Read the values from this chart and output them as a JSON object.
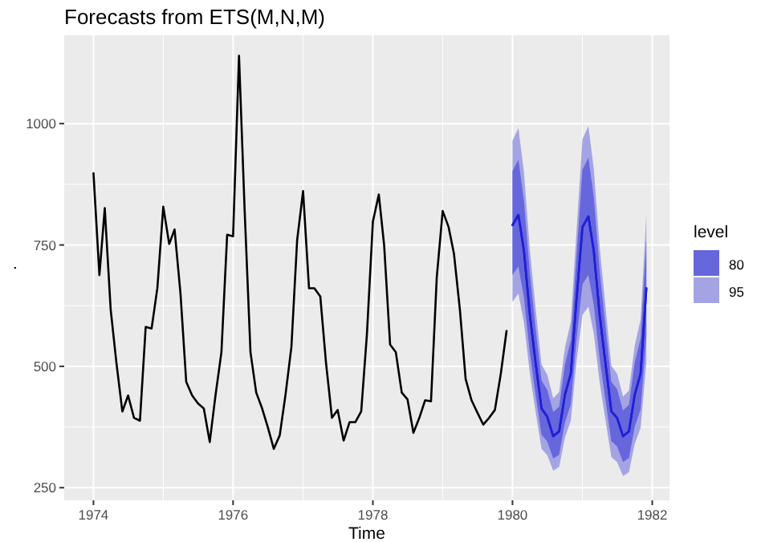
{
  "chart_data": {
    "type": "line",
    "title": "Forecasts from ETS(M,N,M)",
    "xlabel": "Time",
    "ylabel": ".",
    "legend_title": "level",
    "legend": "right",
    "grid": true,
    "xlim": [
      "1973-08",
      "1982-04"
    ],
    "xticks": [
      "1974",
      "1976",
      "1978",
      "1980",
      "1982"
    ],
    "ylim": [
      224,
      1182
    ],
    "yticks": [
      250,
      500,
      750,
      1000
    ],
    "series": [
      {
        "name": "80",
        "color": "#1f1fd6",
        "x": [
          "1980-01",
          "1980-02",
          "1980-03",
          "1980-04",
          "1980-05",
          "1980-06",
          "1980-07",
          "1980-08",
          "1980-09",
          "1980-10",
          "1980-11",
          "1980-12",
          "1981-01",
          "1981-02",
          "1981-03",
          "1981-04",
          "1981-05",
          "1981-06",
          "1981-07",
          "1981-08",
          "1981-09",
          "1981-10",
          "1981-11",
          "1981-12"
        ],
        "values": [
          791,
          812,
          738,
          606,
          507,
          413,
          396,
          356,
          366,
          441,
          485,
          639,
          787,
          809,
          738,
          606,
          507,
          407,
          394,
          356,
          366,
          441,
          485,
          661
        ],
        "lower": [
          688,
          706,
          642,
          527,
          441,
          359,
          345,
          310,
          318,
          384,
          422,
          556,
          669,
          688,
          627,
          515,
          431,
          346,
          335,
          303,
          311,
          375,
          412,
          562
        ],
        "upper": [
          902,
          926,
          841,
          691,
          578,
          471,
          451,
          406,
          417,
          503,
          553,
          728,
          905,
          930,
          849,
          697,
          583,
          468,
          453,
          409,
          421,
          507,
          558,
          760
        ]
      },
      {
        "name": "95",
        "color": "#1f1fd6",
        "x": [
          "1980-01",
          "1980-02",
          "1980-03",
          "1980-04",
          "1980-05",
          "1980-06",
          "1980-07",
          "1980-08",
          "1980-09",
          "1980-10",
          "1980-11",
          "1980-12",
          "1981-01",
          "1981-02",
          "1981-03",
          "1981-04",
          "1981-05",
          "1981-06",
          "1981-07",
          "1981-08",
          "1981-09",
          "1981-10",
          "1981-11",
          "1981-12"
        ],
        "values": [
          791,
          812,
          738,
          606,
          507,
          413,
          396,
          356,
          366,
          441,
          485,
          639,
          787,
          809,
          738,
          606,
          507,
          407,
          394,
          356,
          366,
          441,
          485,
          661
        ],
        "lower": [
          633,
          650,
          590,
          485,
          406,
          330,
          317,
          285,
          293,
          353,
          388,
          511,
          606,
          623,
          568,
          467,
          390,
          313,
          303,
          274,
          282,
          340,
          373,
          509
        ],
        "upper": [
          965,
          991,
          900,
          739,
          619,
          504,
          483,
          434,
          447,
          538,
          592,
          780,
          968,
          995,
          908,
          745,
          624,
          501,
          485,
          438,
          450,
          542,
          597,
          813
        ]
      },
      {
        "color": "#000000",
        "x": [
          "1974-01",
          "1974-02",
          "1974-03",
          "1974-04",
          "1974-05",
          "1974-06",
          "1974-07",
          "1974-08",
          "1974-09",
          "1974-10",
          "1974-11",
          "1974-12",
          "1975-01",
          "1975-02",
          "1975-03",
          "1975-04",
          "1975-05",
          "1975-06",
          "1975-07",
          "1975-08",
          "1975-09",
          "1975-10",
          "1975-11",
          "1975-12",
          "1976-01",
          "1976-02",
          "1976-03",
          "1976-04",
          "1976-05",
          "1976-06",
          "1976-07",
          "1976-08",
          "1976-09",
          "1976-10",
          "1976-11",
          "1976-12",
          "1977-01",
          "1977-02",
          "1977-03",
          "1977-04",
          "1977-05",
          "1977-06",
          "1977-07",
          "1977-08",
          "1977-09",
          "1977-10",
          "1977-11",
          "1977-12",
          "1978-01",
          "1978-02",
          "1978-03",
          "1978-04",
          "1978-05",
          "1978-06",
          "1978-07",
          "1978-08",
          "1978-09",
          "1978-10",
          "1978-11",
          "1978-12",
          "1979-01",
          "1979-02",
          "1979-03",
          "1979-04",
          "1979-05",
          "1979-06",
          "1979-07",
          "1979-08",
          "1979-09",
          "1979-10",
          "1979-11",
          "1979-12"
        ],
        "values": [
          898,
          688,
          826,
          617,
          507,
          407,
          440,
          394,
          388,
          581,
          578,
          661,
          829,
          752,
          782,
          650,
          468,
          440,
          424,
          413,
          344,
          440,
          529,
          771,
          768,
          1140,
          826,
          529,
          446,
          413,
          374,
          330,
          358,
          441,
          540,
          760,
          861,
          661,
          661,
          644,
          507,
          394,
          410,
          347,
          385,
          385,
          407,
          567,
          798,
          854,
          749,
          545,
          529,
          446,
          432,
          363,
          394,
          430,
          428,
          683,
          820,
          787,
          732,
          617,
          474,
          430,
          405,
          380,
          394,
          410,
          485,
          573
        ]
      }
    ]
  }
}
